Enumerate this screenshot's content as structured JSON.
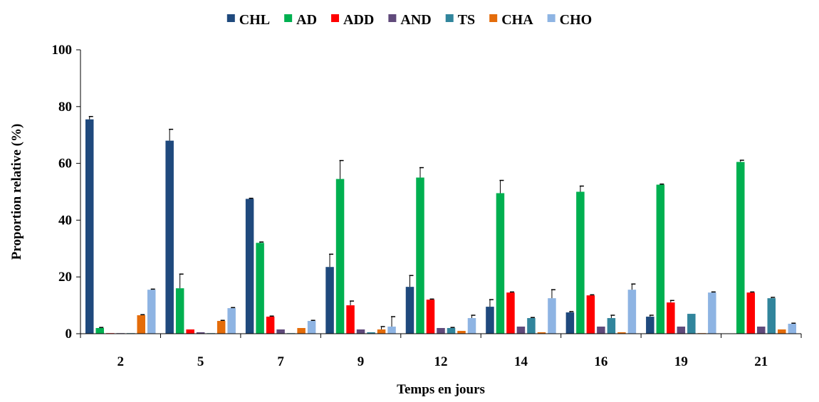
{
  "chart_data": {
    "type": "bar",
    "xlabel": "Temps en jours",
    "ylabel": "Proportion relative (%)",
    "ylim": [
      0,
      100
    ],
    "yticks": [
      0,
      20,
      40,
      60,
      80,
      100
    ],
    "grid": false,
    "legend_position": "top",
    "categories": [
      "2",
      "5",
      "7",
      "9",
      "12",
      "14",
      "16",
      "19",
      "21"
    ],
    "series": [
      {
        "name": "CHL",
        "color": "#1f497d",
        "values": [
          75.5,
          68.0,
          47.5,
          23.5,
          16.5,
          9.5,
          7.5,
          6.0,
          0
        ],
        "errors": [
          1.0,
          4.0,
          0.2,
          4.5,
          4.0,
          2.5,
          0.3,
          0.5,
          0
        ]
      },
      {
        "name": "AD",
        "color": "#00b050",
        "values": [
          2.0,
          16.0,
          32.0,
          54.5,
          55.0,
          49.5,
          50.0,
          52.5,
          60.5
        ],
        "errors": [
          0.2,
          5.0,
          0.3,
          6.5,
          3.5,
          4.5,
          2.0,
          0.2,
          0.6
        ]
      },
      {
        "name": "ADD",
        "color": "#ff0000",
        "values": [
          0.2,
          1.5,
          6.0,
          10.0,
          12.0,
          14.5,
          13.5,
          11.0,
          14.5
        ],
        "errors": [
          0,
          0,
          0.2,
          1.5,
          0.2,
          0.2,
          0.2,
          0.7,
          0.2
        ]
      },
      {
        "name": "AND",
        "color": "#604a7b",
        "values": [
          0.2,
          0.5,
          1.5,
          1.5,
          2.0,
          2.5,
          2.5,
          2.5,
          2.5
        ],
        "errors": [
          0,
          0,
          0,
          0,
          0,
          0,
          0,
          0,
          0
        ]
      },
      {
        "name": "TS",
        "color": "#31859c",
        "values": [
          0.2,
          0.2,
          0.2,
          0.5,
          2.0,
          5.5,
          5.5,
          7.0,
          12.5
        ],
        "errors": [
          0,
          0,
          0,
          0,
          0.2,
          0.2,
          1.0,
          0,
          0.3
        ]
      },
      {
        "name": "CHA",
        "color": "#e46c0a",
        "values": [
          6.5,
          4.5,
          2.0,
          1.5,
          1.0,
          0.5,
          0.5,
          0.2,
          1.5
        ],
        "errors": [
          0.2,
          0.2,
          0,
          1.0,
          0,
          0,
          0,
          0,
          0
        ]
      },
      {
        "name": "CHO",
        "color": "#8eb4e3",
        "values": [
          15.5,
          9.0,
          4.5,
          2.5,
          5.5,
          12.5,
          15.5,
          14.5,
          3.5
        ],
        "errors": [
          0.2,
          0.2,
          0.2,
          3.5,
          1.0,
          3.0,
          2.0,
          0.2,
          0.2
        ]
      }
    ]
  }
}
